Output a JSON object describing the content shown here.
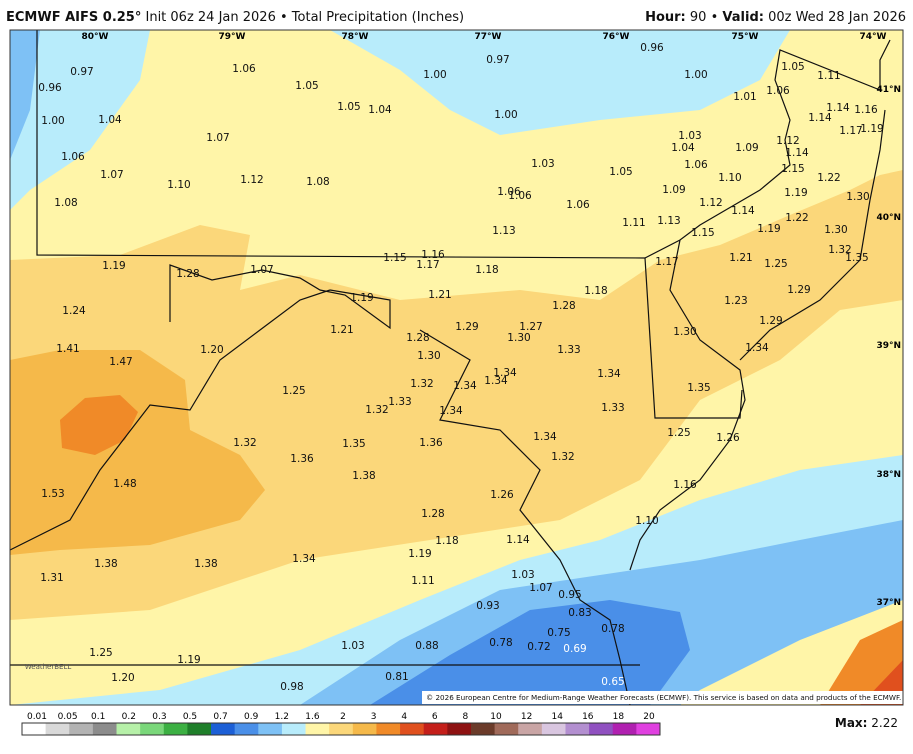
{
  "header": {
    "model": "ECMWF AIFS 0.25°",
    "init": "Init 06z 24 Jan 2026",
    "separator": "•",
    "field": "Total Precipitation (Inches)",
    "hour_label": "Hour:",
    "hour": "90",
    "valid_label": "Valid:",
    "valid": "00z Wed 28 Jan 2026"
  },
  "longitude_labels": [
    "80°W",
    "79°W",
    "78°W",
    "77°W",
    "76°W",
    "75°W",
    "74°W"
  ],
  "latitude_labels": [
    "41°N",
    "40°N",
    "39°N",
    "38°N",
    "37°N"
  ],
  "points": [
    "0.97",
    "0.96",
    "1.00",
    "1.04",
    "1.06",
    "1.07",
    "1.08",
    "1.06",
    "1.05",
    "1.05",
    "1.04",
    "1.07",
    "1.10",
    "1.12",
    "1.08",
    "1.00",
    "0.97",
    "1.00",
    "0.96",
    "1.00",
    "1.05",
    "1.11",
    "1.01",
    "1.06",
    "1.14",
    "1.16",
    "1.14",
    "1.17",
    "1.19",
    "1.03",
    "1.04",
    "1.09",
    "1.12",
    "1.14",
    "1.03",
    "1.05",
    "1.06",
    "1.10",
    "1.15",
    "1.22",
    "1.09",
    "1.06",
    "1.06",
    "1.06",
    "1.12",
    "1.19",
    "1.30",
    "1.14",
    "1.11",
    "1.13",
    "1.22",
    "1.30",
    "1.13",
    "1.15",
    "1.19",
    "1.32",
    "1.35",
    "1.19",
    "1.28",
    "1.07",
    "1.15",
    "1.16",
    "1.17",
    "1.18",
    "1.17",
    "1.21",
    "1.25",
    "1.18",
    "1.19",
    "1.21",
    "1.24",
    "1.21",
    "1.29",
    "1.27",
    "1.28",
    "1.30",
    "1.23",
    "1.29",
    "1.30",
    "1.29",
    "1.34",
    "1.41",
    "1.20",
    "1.28",
    "1.30",
    "1.47",
    "1.33",
    "1.34",
    "1.34",
    "1.32",
    "1.34",
    "1.34",
    "1.25",
    "1.35",
    "1.33",
    "1.32",
    "1.34",
    "1.33",
    "1.34",
    "1.25",
    "1.26",
    "1.32",
    "1.35",
    "1.36",
    "1.32",
    "1.36",
    "1.38",
    "1.16",
    "1.53",
    "1.48",
    "1.26",
    "1.28",
    "1.10",
    "1.18",
    "1.14",
    "1.19",
    "1.34",
    "1.38",
    "1.38",
    "1.31",
    "1.11",
    "1.03",
    "1.07",
    "0.95",
    "0.93",
    "0.83",
    "0.78",
    "0.75",
    "1.03",
    "0.88",
    "0.78",
    "0.72",
    "0.69",
    "1.25",
    "1.19",
    "0.81",
    "1.20",
    "0.98",
    "0.65"
  ],
  "colorbar": {
    "labels": [
      "0.01",
      "0.05",
      "0.1",
      "0.2",
      "0.3",
      "0.5",
      "0.7",
      "0.9",
      "1.2",
      "1.6",
      "2",
      "3",
      "4",
      "6",
      "8",
      "10",
      "12",
      "14",
      "16",
      "18",
      "20"
    ],
    "colors": [
      "#ffffff",
      "#d9d9d9",
      "#b3b3b3",
      "#8c8c8c",
      "#b6f0a8",
      "#7ad77a",
      "#3cb043",
      "#1f7f2a",
      "#1c5fd6",
      "#4a8fe8",
      "#7ec1f5",
      "#b8ecfb",
      "#fff5a8",
      "#fbd77a",
      "#f5b94a",
      "#f08a28",
      "#e0501e",
      "#c41f1a",
      "#8e1212",
      "#6b3b2a",
      "#a06a5a",
      "#c9a5a5",
      "#d9c6e0",
      "#b38fd0",
      "#9050c0",
      "#b020b0",
      "#e040e0"
    ]
  },
  "footer": {
    "max_label": "Max:",
    "max": "2.22",
    "copyright": "© 2026 European Centre for Medium-Range Weather Forecasts (ECMWF). This service is based on data and products of the ECMWF.",
    "logo": "WeatherBELL"
  }
}
